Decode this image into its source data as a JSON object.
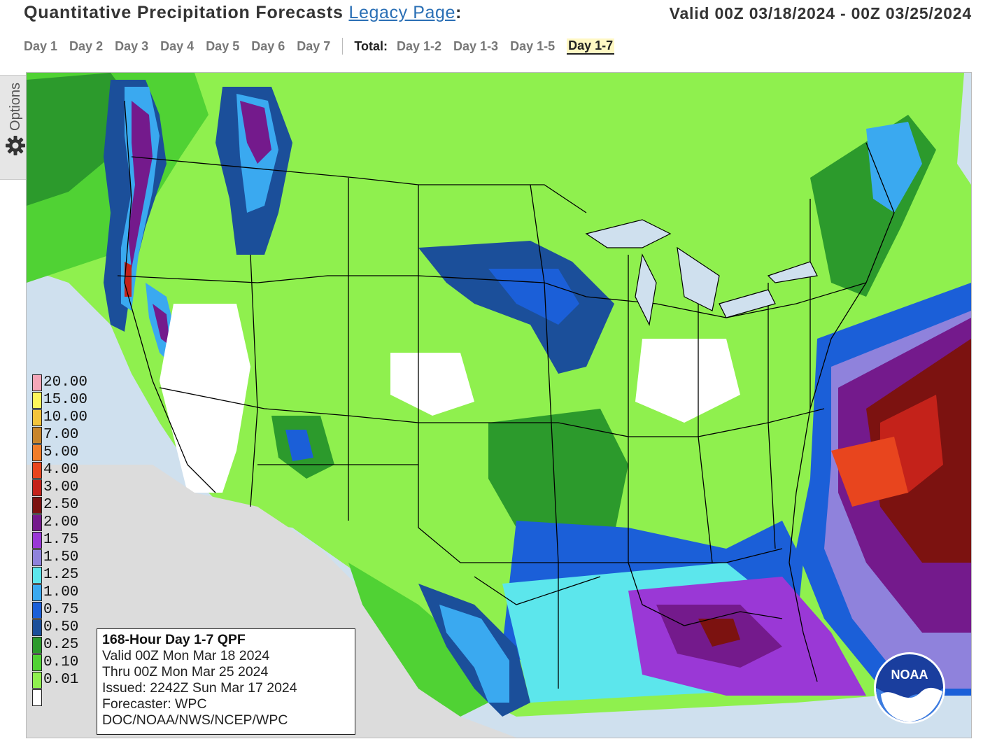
{
  "header": {
    "title": "Quantitative Precipitation Forecasts",
    "legacy_link": "Legacy Page",
    "colon": ":",
    "valid_range": "Valid 00Z 03/18/2024 - 00Z 03/25/2024"
  },
  "tabs": {
    "days": [
      "Day 1",
      "Day 2",
      "Day 3",
      "Day 4",
      "Day 5",
      "Day 6",
      "Day 7"
    ],
    "total_label": "Total:",
    "totals": [
      "Day 1-2",
      "Day 1-3",
      "Day 1-5",
      "Day 1-7"
    ],
    "active": "Day 1-7"
  },
  "options": {
    "label": "Options",
    "icon": "gear-icon"
  },
  "legend": {
    "items": [
      {
        "label": "20.00",
        "color": "#f4a6b8"
      },
      {
        "label": "15.00",
        "color": "#fdf65b"
      },
      {
        "label": "10.00",
        "color": "#f2c43c"
      },
      {
        "label": "7.00",
        "color": "#c8852b"
      },
      {
        "label": "5.00",
        "color": "#f07d2a"
      },
      {
        "label": "4.00",
        "color": "#e8451e"
      },
      {
        "label": "3.00",
        "color": "#c4221a"
      },
      {
        "label": "2.50",
        "color": "#7c1210"
      },
      {
        "label": "2.00",
        "color": "#741a8c"
      },
      {
        "label": "1.75",
        "color": "#9a38d6"
      },
      {
        "label": "1.50",
        "color": "#8f82dc"
      },
      {
        "label": "1.25",
        "color": "#5ce6ec"
      },
      {
        "label": "1.00",
        "color": "#3aa9f0"
      },
      {
        "label": "0.75",
        "color": "#1b5fd8"
      },
      {
        "label": "0.50",
        "color": "#1b4f9a"
      },
      {
        "label": "0.25",
        "color": "#2c9a2c"
      },
      {
        "label": "0.10",
        "color": "#50d234"
      },
      {
        "label": "0.01",
        "color": "#8ff04e"
      },
      {
        "label": "",
        "color": "#ffffff"
      }
    ]
  },
  "infobox": {
    "title": "168-Hour Day 1-7 QPF",
    "valid": "Valid 00Z Mon Mar 18 2024",
    "thru": "Thru 00Z Mon Mar 25 2024",
    "issued": "Issued: 2242Z Sun Mar 17 2024",
    "forecaster": "Forecaster: WPC",
    "agency": "DOC/NOAA/NWS/NCEP/WPC"
  },
  "logo": {
    "text": "NOAA",
    "icon": "noaa-logo-icon"
  }
}
